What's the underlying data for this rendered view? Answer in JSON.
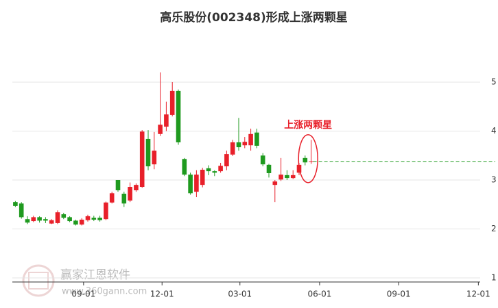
{
  "chart_data": {
    "type": "candlestick",
    "title": "高乐股份(002348)形成上涨两颗星",
    "annotation": "上涨两颗星",
    "watermark": {
      "text": "赢家江恩软件",
      "url": "www.360gann.com"
    },
    "up_color": "#e8202a",
    "down_color": "#1f9a1f",
    "x": [
      0,
      1,
      2,
      3,
      4,
      5,
      6,
      7,
      8,
      9,
      10,
      11,
      12,
      13,
      14,
      15,
      16,
      17,
      18,
      19,
      20,
      21,
      22,
      23,
      24,
      25,
      26,
      27,
      28,
      29,
      30,
      31,
      32,
      33,
      34,
      35,
      36,
      37,
      38,
      39,
      40,
      41,
      42,
      43,
      44,
      45,
      46,
      47,
      48,
      49
    ],
    "open": [
      2.55,
      2.52,
      2.2,
      2.16,
      2.24,
      2.2,
      2.11,
      2.12,
      2.3,
      2.24,
      2.17,
      2.09,
      2.18,
      2.23,
      2.23,
      2.2,
      2.54,
      3.0,
      2.72,
      2.58,
      2.79,
      2.86,
      3.84,
      3.32,
      3.94,
      4.09,
      4.33,
      4.82,
      3.43,
      3.11,
      2.76,
      2.9,
      3.24,
      3.18,
      3.18,
      3.28,
      3.52,
      3.77,
      3.71,
      3.71,
      3.97,
      3.5,
      3.31,
      2.9,
      3.01,
      3.1,
      3.04,
      3.15,
      3.45,
      3.37
    ],
    "high": [
      2.57,
      2.55,
      2.26,
      2.27,
      2.26,
      2.24,
      2.2,
      2.38,
      2.33,
      2.26,
      2.19,
      2.22,
      2.29,
      2.27,
      2.27,
      2.56,
      2.76,
      3.0,
      2.76,
      2.95,
      2.93,
      4.02,
      4.02,
      3.98,
      5.2,
      4.6,
      5.0,
      4.85,
      3.45,
      3.15,
      3.2,
      3.25,
      3.3,
      3.2,
      3.35,
      3.6,
      3.82,
      4.27,
      3.88,
      4.05,
      4.05,
      3.55,
      3.33,
      3.0,
      3.45,
      3.2,
      3.2,
      3.35,
      3.5,
      3.82
    ],
    "low": [
      2.45,
      2.21,
      2.1,
      2.14,
      2.13,
      2.12,
      2.1,
      2.1,
      2.2,
      2.14,
      2.07,
      2.07,
      2.15,
      2.16,
      2.15,
      2.18,
      2.52,
      2.76,
      2.45,
      2.55,
      2.76,
      2.84,
      3.2,
      3.22,
      3.9,
      4.0,
      4.3,
      3.72,
      3.08,
      2.7,
      2.65,
      2.85,
      3.1,
      3.08,
      3.15,
      3.2,
      3.49,
      3.6,
      3.65,
      3.6,
      3.65,
      3.28,
      3.05,
      2.55,
      2.98,
      3.0,
      3.02,
      3.1,
      3.3,
      3.33
    ],
    "close": [
      2.47,
      2.24,
      2.13,
      2.24,
      2.17,
      2.17,
      2.18,
      2.34,
      2.23,
      2.16,
      2.09,
      2.19,
      2.26,
      2.19,
      2.18,
      2.54,
      2.73,
      2.79,
      2.52,
      2.86,
      2.9,
      3.99,
      3.28,
      3.6,
      4.13,
      4.34,
      4.82,
      3.77,
      3.11,
      2.73,
      3.11,
      3.21,
      3.18,
      3.15,
      3.29,
      3.53,
      3.77,
      3.67,
      3.78,
      3.94,
      3.7,
      3.32,
      3.14,
      2.97,
      3.11,
      3.04,
      3.1,
      3.31,
      3.36,
      3.38
    ],
    "reference_value": 3.38,
    "reference_color": "#1f9a1f",
    "xlim": [
      -0.5,
      77
    ],
    "xticks": [
      {
        "value": 11.3,
        "label": "09-01"
      },
      {
        "value": 24.3,
        "label": "12-01"
      },
      {
        "value": 37.2,
        "label": "03-01"
      },
      {
        "value": 50.4,
        "label": "06-01"
      },
      {
        "value": 63.5,
        "label": "09-01"
      },
      {
        "value": 76.7,
        "label": "12-01"
      }
    ],
    "ylim": [
      1,
      6
    ],
    "yticks": [
      1,
      2,
      3,
      4,
      5
    ],
    "grid": true
  }
}
